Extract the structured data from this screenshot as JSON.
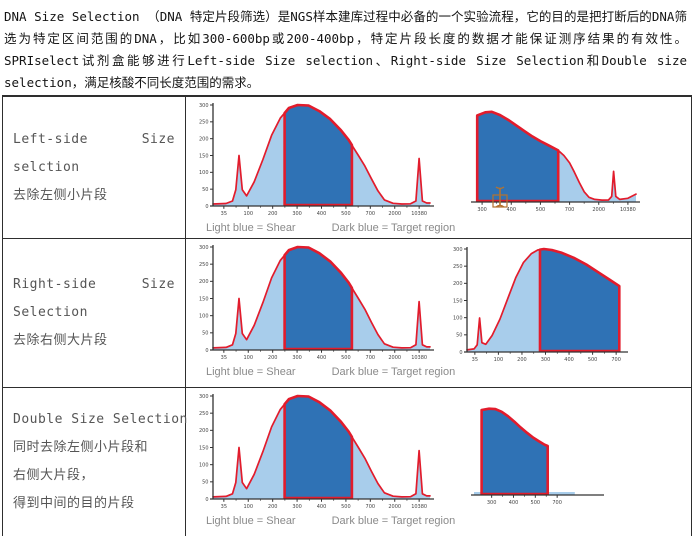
{
  "intro": {
    "text": "DNA Size Selection （DNA 特定片段筛选）是NGS样本建库过程中必备的一个实验流程，它的目的是把打断后的DNA筛选为特定区间范围的DNA，比如300-600bp或200-400bp，特定片段长度的数据才能保证测序结果的有效性。SPRIselect试剂盒能够进行Left-side Size selection、Right-side Size Selection和Double size selection，满足核酸不同长度范围的需求。"
  },
  "caption": {
    "light_label": "Light blue = Shear",
    "dark_label": "Dark blue = Target region"
  },
  "table": {
    "rows": [
      {
        "line1_left": "Left-side",
        "line1_right": "Size",
        "line2": "selction",
        "line3": "去除左侧小片段"
      },
      {
        "line1_left": "Right-side",
        "line1_right": "Size",
        "line2": "Selection",
        "line3": "去除右侧大片段"
      },
      {
        "line1": "Double Size Selection",
        "line2": "同时去除左侧小片段和",
        "line3": "右侧大片段，",
        "line4": "得到中间的目的片段"
      }
    ]
  },
  "palette": {
    "light_blue": "#a8cdeb",
    "dark_blue": "#2f72b5",
    "red": "#e21c2c",
    "axis": "#333333",
    "caption_gray": "#8a8a8a",
    "cursor_orange": "#b5722f"
  },
  "chart_data": [
    {
      "id": "full_trace",
      "type": "area",
      "title": "Sheared DNA trace with target region highlighted",
      "legend": [
        "Light blue = Shear",
        "Dark blue = Target region"
      ],
      "ylim": [
        0,
        300
      ],
      "y_tick_labels": [
        "300",
        "250",
        "200",
        "150",
        "100",
        "50",
        "0"
      ],
      "x_tick_labels": [
        "35",
        "100",
        "200",
        "300",
        "400",
        "500",
        "700",
        "2000",
        "10380"
      ],
      "fill_under_curve": true,
      "target_region": [
        0.33,
        0.64
      ],
      "series": [
        [
          0.0,
          0.02
        ],
        [
          0.06,
          0.025
        ],
        [
          0.09,
          0.05
        ],
        [
          0.105,
          0.16
        ],
        [
          0.12,
          0.5
        ],
        [
          0.135,
          0.16
        ],
        [
          0.155,
          0.1
        ],
        [
          0.19,
          0.24
        ],
        [
          0.23,
          0.46
        ],
        [
          0.27,
          0.7
        ],
        [
          0.31,
          0.87
        ],
        [
          0.35,
          0.97
        ],
        [
          0.39,
          1.0
        ],
        [
          0.44,
          0.995
        ],
        [
          0.49,
          0.94
        ],
        [
          0.54,
          0.86
        ],
        [
          0.59,
          0.75
        ],
        [
          0.625,
          0.655
        ],
        [
          0.645,
          0.585
        ],
        [
          0.67,
          0.5
        ],
        [
          0.7,
          0.395
        ],
        [
          0.73,
          0.27
        ],
        [
          0.76,
          0.15
        ],
        [
          0.79,
          0.06
        ],
        [
          0.83,
          0.027
        ],
        [
          0.87,
          0.02
        ],
        [
          0.91,
          0.022
        ],
        [
          0.935,
          0.05
        ],
        [
          0.95,
          0.47
        ],
        [
          0.965,
          0.05
        ],
        [
          0.985,
          0.03
        ],
        [
          1.0,
          0.03
        ]
      ]
    },
    {
      "id": "row1_result",
      "type": "area",
      "title": "After left-side size selection (small fragments removed)",
      "ylim": [
        0,
        300
      ],
      "y_tick_labels": null,
      "x_tick_labels": [
        "300",
        "400",
        "500",
        "700",
        "2000",
        "10380"
      ],
      "fill_under_curve": true,
      "target_region": [
        0.02,
        0.52
      ],
      "series": [
        [
          0.02,
          0.93
        ],
        [
          0.07,
          0.965
        ],
        [
          0.11,
          0.97
        ],
        [
          0.16,
          0.935
        ],
        [
          0.21,
          0.885
        ],
        [
          0.26,
          0.825
        ],
        [
          0.31,
          0.765
        ],
        [
          0.36,
          0.705
        ],
        [
          0.41,
          0.655
        ],
        [
          0.46,
          0.61
        ],
        [
          0.52,
          0.555
        ],
        [
          0.555,
          0.5
        ],
        [
          0.59,
          0.42
        ],
        [
          0.62,
          0.32
        ],
        [
          0.65,
          0.21
        ],
        [
          0.68,
          0.11
        ],
        [
          0.71,
          0.05
        ],
        [
          0.745,
          0.028
        ],
        [
          0.79,
          0.02
        ],
        [
          0.83,
          0.022
        ],
        [
          0.85,
          0.06
        ],
        [
          0.862,
          0.33
        ],
        [
          0.875,
          0.06
        ],
        [
          0.9,
          0.028
        ],
        [
          0.95,
          0.04
        ],
        [
          1.0,
          0.085
        ]
      ]
    },
    {
      "id": "row2_result",
      "type": "area",
      "title": "After right-side size selection (large fragments removed)",
      "ylim": [
        0,
        300
      ],
      "y_tick_labels": [
        "300",
        "250",
        "200",
        "150",
        "100",
        "50",
        "0"
      ],
      "x_tick_labels": [
        "35",
        "100",
        "200",
        "300",
        "400",
        "500",
        "700"
      ],
      "fill_under_curve": true,
      "target_region": [
        0.465,
        0.97
      ],
      "series": [
        [
          0.0,
          0.02
        ],
        [
          0.045,
          0.03
        ],
        [
          0.065,
          0.07
        ],
        [
          0.08,
          0.33
        ],
        [
          0.095,
          0.09
        ],
        [
          0.12,
          0.075
        ],
        [
          0.16,
          0.16
        ],
        [
          0.21,
          0.32
        ],
        [
          0.26,
          0.52
        ],
        [
          0.31,
          0.72
        ],
        [
          0.36,
          0.87
        ],
        [
          0.41,
          0.955
        ],
        [
          0.45,
          0.99
        ],
        [
          0.49,
          1.0
        ],
        [
          0.54,
          0.99
        ],
        [
          0.6,
          0.965
        ],
        [
          0.68,
          0.915
        ],
        [
          0.76,
          0.85
        ],
        [
          0.84,
          0.77
        ],
        [
          0.91,
          0.7
        ],
        [
          0.97,
          0.64
        ]
      ]
    },
    {
      "id": "row3_result",
      "type": "area",
      "title": "After double size selection (only target fragment remains)",
      "ylim": [
        0,
        300
      ],
      "y_tick_labels": null,
      "x_tick_labels": [
        "300",
        "400",
        "500",
        "700"
      ],
      "x_tick_span": [
        0.14,
        0.66
      ],
      "fill_under_curve": false,
      "baseline_strip": 0.8,
      "target_region": [
        0.06,
        0.585
      ],
      "series": [
        [
          0.06,
          0.955
        ],
        [
          0.12,
          0.97
        ],
        [
          0.17,
          0.965
        ],
        [
          0.22,
          0.935
        ],
        [
          0.27,
          0.885
        ],
        [
          0.32,
          0.825
        ],
        [
          0.37,
          0.76
        ],
        [
          0.42,
          0.7
        ],
        [
          0.47,
          0.645
        ],
        [
          0.52,
          0.6
        ],
        [
          0.56,
          0.565
        ],
        [
          0.585,
          0.55
        ]
      ]
    }
  ]
}
